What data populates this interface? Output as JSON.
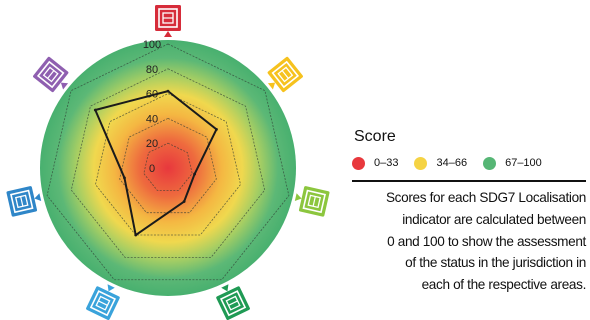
{
  "chart_data": {
    "type": "radar",
    "title": "",
    "axes_count": 7,
    "rings": [
      20,
      40,
      60,
      80,
      100
    ],
    "tick_labels": [
      "0",
      "20",
      "40",
      "60",
      "80",
      "100"
    ],
    "range": [
      0,
      100
    ],
    "series": [
      {
        "values": [
          62,
          50,
          22,
          30,
          60,
          36,
          75
        ]
      }
    ],
    "zones": [
      {
        "range": [
          0,
          33
        ],
        "color": "#e8383d"
      },
      {
        "range": [
          34,
          66
        ],
        "color": "#f5d344"
      },
      {
        "range": [
          67,
          100
        ],
        "color": "#56b675"
      }
    ]
  },
  "icons": [
    {
      "name": "sdg-indicator-1-icon",
      "color": "#d62c3a"
    },
    {
      "name": "sdg-indicator-2-icon",
      "color": "#f6c21e"
    },
    {
      "name": "sdg-indicator-3-icon",
      "color": "#8cc63e"
    },
    {
      "name": "sdg-indicator-4-icon",
      "color": "#1f9a54"
    },
    {
      "name": "sdg-indicator-5-icon",
      "color": "#3aa3db"
    },
    {
      "name": "sdg-indicator-6-icon",
      "color": "#2f86c8"
    },
    {
      "name": "sdg-indicator-7-icon",
      "color": "#8f5fb0"
    }
  ],
  "legend": {
    "title": "Score",
    "items": [
      {
        "label": "0–33",
        "color": "#e8383d"
      },
      {
        "label": "34–66",
        "color": "#f5d344"
      },
      {
        "label": "67–100",
        "color": "#56b675"
      }
    ]
  },
  "note": {
    "lines": [
      "Scores for each SDG7 Localisation",
      "indicator are calculated between",
      "0 and 100 to show the assessment",
      "of the status in the jurisdiction in",
      "each of the respective areas."
    ]
  }
}
